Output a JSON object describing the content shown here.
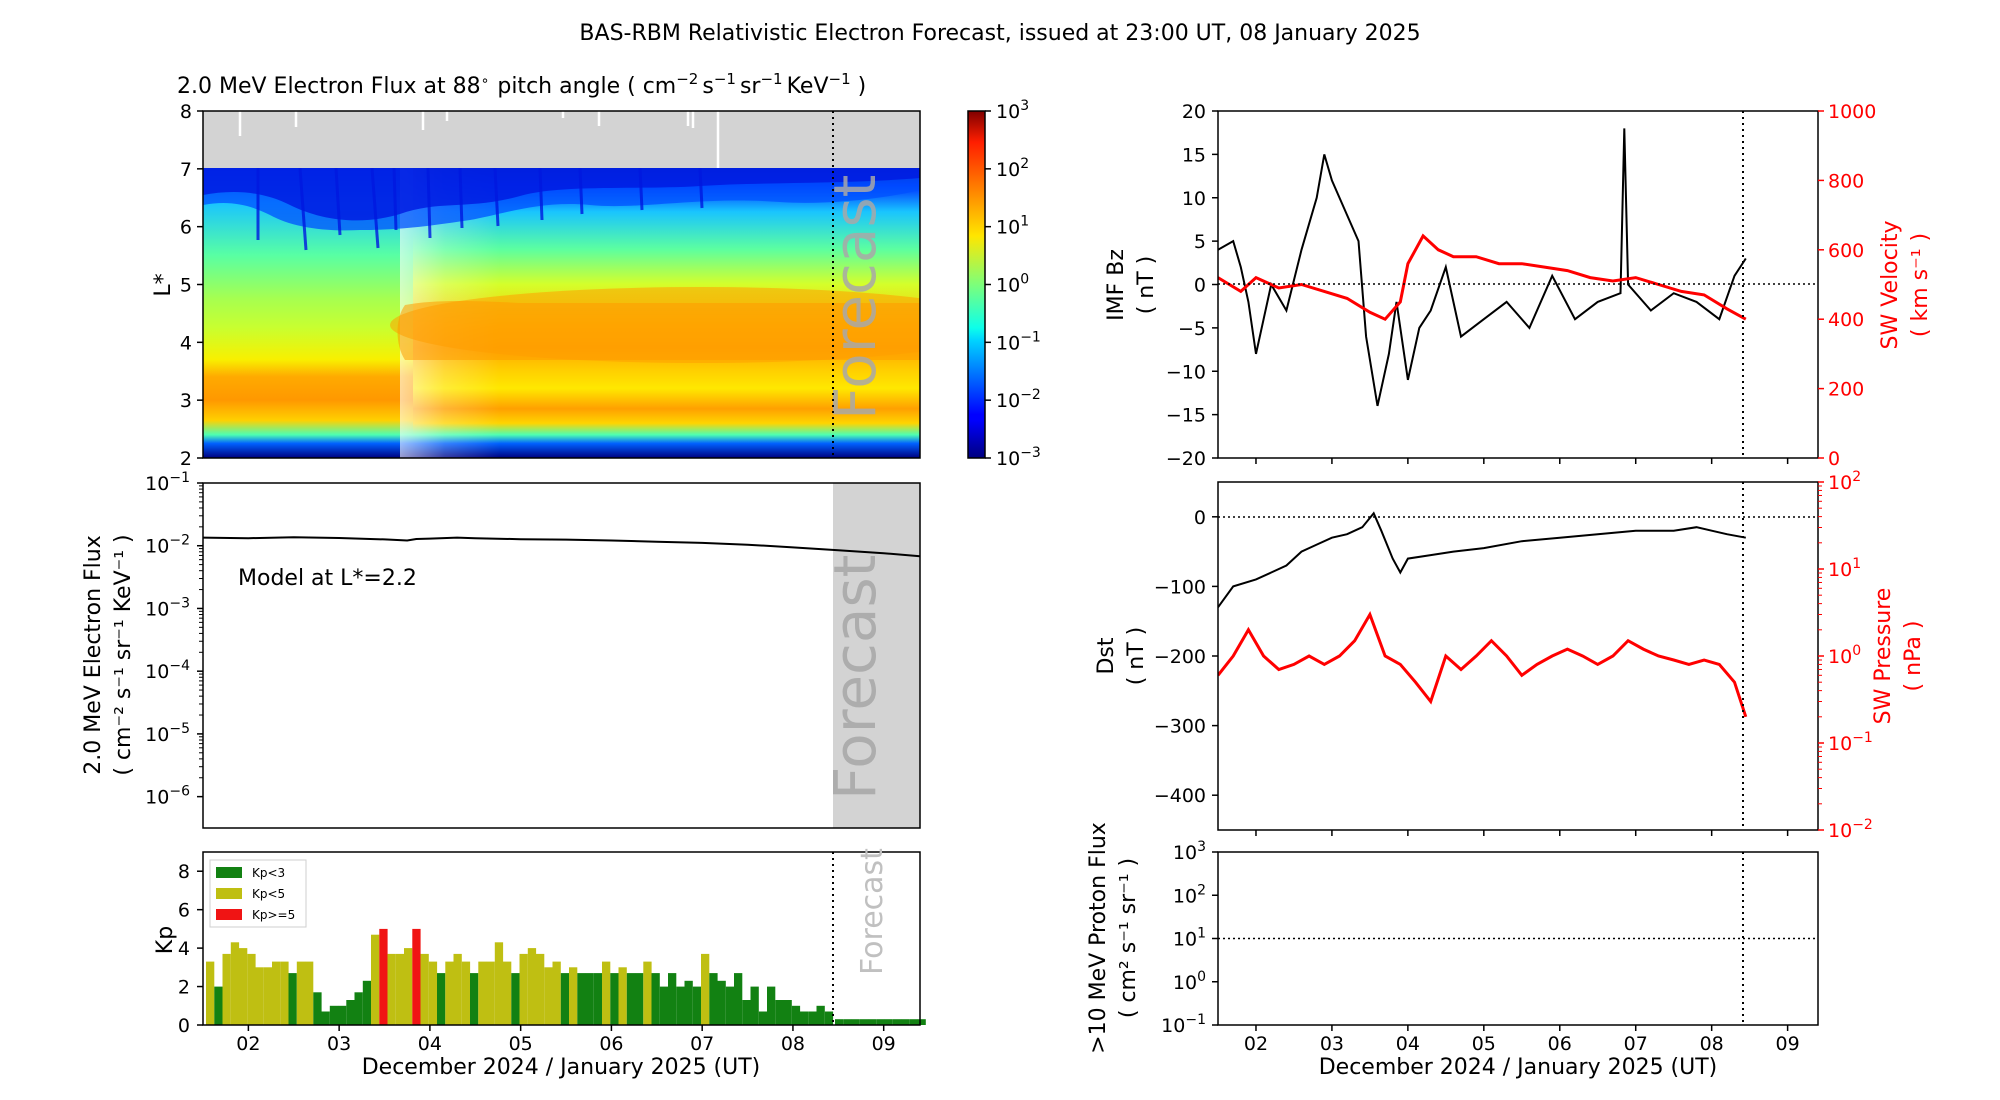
{
  "title": "BAS-RBM Relativistic Electron Forecast, issued at 23:00 UT, 08 January 2025",
  "colors": {
    "kp_low": "#128112",
    "kp_mid": "#bfbf12",
    "kp_high": "#f01414",
    "forecast_shade": "#d3d3d3",
    "gray_top": "#d3d3d3",
    "right_axis": "#ff0000"
  },
  "chart_data": [
    {
      "id": "flux-heatmap",
      "type": "heatmap",
      "title": "2.0 MeV Electron Flux at 88° pitch angle ( cm⁻² s⁻¹ sr⁻¹ KeV⁻¹ )",
      "title_main": "2.0 MeV Electron Flux at 88",
      "title_deg": "∘",
      "title_tail": "pitch angle ( cm",
      "title_units": [
        [
          "s",
          "−1"
        ],
        [
          "sr",
          "−1"
        ],
        [
          "KeV",
          "−1"
        ]
      ],
      "title_cm_sup": "−2",
      "title_close": ")",
      "ylabel": "L*",
      "ylim": [
        2,
        8
      ],
      "yticks": [
        "2",
        "3",
        "4",
        "5",
        "6",
        "7",
        "8"
      ],
      "forecast_label": "Forecast",
      "colorbar": {
        "base": "10",
        "exponents": [
          "−3",
          "−2",
          "−1",
          "0",
          "1",
          "2",
          "3"
        ],
        "range_log10": [
          -3,
          3
        ]
      }
    },
    {
      "id": "flux-line",
      "type": "line",
      "ylabel_line1": "2.0 MeV Electron Flux",
      "ylabel_line2": "( cm⁻² s⁻¹ sr⁻¹ KeV⁻¹ )",
      "annotation": "Model at L*=2.2",
      "yscale": "log",
      "ylim_log10": [
        -6.5,
        -1
      ],
      "ytick_exponents": [
        "−6",
        "−5",
        "−4",
        "−3",
        "−2",
        "−1"
      ],
      "x": [
        1.5,
        2.0,
        2.5,
        3.0,
        3.5,
        3.75,
        3.85,
        4.0,
        4.3,
        4.5,
        5.0,
        5.5,
        6.0,
        6.5,
        7.0,
        7.5,
        8.0,
        8.5,
        9.0,
        9.4
      ],
      "y": [
        0.0135,
        0.0132,
        0.0137,
        0.0133,
        0.0126,
        0.0121,
        0.0128,
        0.013,
        0.0135,
        0.0132,
        0.0127,
        0.0125,
        0.0121,
        0.0116,
        0.0111,
        0.0104,
        0.0094,
        0.0085,
        0.0076,
        0.0068
      ],
      "forecast_label": "Forecast"
    },
    {
      "id": "kp-bars",
      "type": "bar",
      "ylabel": "Kp",
      "ylim": [
        0,
        9
      ],
      "yticks": [
        "0",
        "2",
        "4",
        "6",
        "8"
      ],
      "xlabel": "December 2024 / January 2025 (UT)",
      "xticks": [
        "02",
        "03",
        "04",
        "05",
        "06",
        "07",
        "08",
        "09"
      ],
      "xlim": [
        1.5,
        9.4
      ],
      "legend": [
        "Kp<3",
        "Kp<5",
        "Kp>=5"
      ],
      "forecast_label": "Forecast",
      "values": [
        3.3,
        2.0,
        3.7,
        4.3,
        4.0,
        3.7,
        3.0,
        3.0,
        3.3,
        3.3,
        2.7,
        3.3,
        3.3,
        1.7,
        0.7,
        1.0,
        1.0,
        1.3,
        1.7,
        2.3,
        4.7,
        5.0,
        3.7,
        3.7,
        4.0,
        5.0,
        3.7,
        3.3,
        2.7,
        3.3,
        3.7,
        3.3,
        2.7,
        3.3,
        3.3,
        4.3,
        3.3,
        2.7,
        3.7,
        4.0,
        3.7,
        3.0,
        3.3,
        2.7,
        3.0,
        2.7,
        2.7,
        2.7,
        3.3,
        2.7,
        3.0,
        2.7,
        2.7,
        3.3,
        2.7,
        2.0,
        2.7,
        2.0,
        2.3,
        2.0,
        3.7,
        2.7,
        2.3,
        2.0,
        2.7,
        1.3,
        2.0,
        0.7,
        2.0,
        1.3,
        1.3,
        1.0,
        0.7,
        0.7,
        1.0,
        0.7
      ],
      "forecast_values": [
        0.3,
        0.3,
        0.3,
        0.3,
        0.3,
        0.3,
        0.3,
        0.3,
        0.3,
        0.3,
        0.3
      ]
    },
    {
      "id": "imf-sw",
      "type": "line",
      "ylabel_line1": "IMF Bz",
      "ylabel_line2": "( nT )",
      "ylim": [
        -20,
        20
      ],
      "yticks": [
        "−20",
        "−15",
        "−10",
        "−5",
        "0",
        "5",
        "10",
        "15",
        "20"
      ],
      "y2label_line1": "SW Velocity",
      "y2label_line2": "( km s⁻¹ )",
      "y2lim": [
        0,
        1000
      ],
      "y2ticks": [
        "0",
        "200",
        "400",
        "600",
        "800",
        "1000"
      ],
      "bz_x": [
        1.5,
        1.7,
        1.8,
        1.9,
        2.0,
        2.1,
        2.2,
        2.4,
        2.6,
        2.8,
        2.9,
        3.0,
        3.2,
        3.35,
        3.45,
        3.6,
        3.75,
        3.85,
        4.0,
        4.15,
        4.3,
        4.5,
        4.7,
        5.0,
        5.3,
        5.6,
        5.9,
        6.2,
        6.5,
        6.8,
        6.85,
        6.9,
        7.2,
        7.5,
        7.8,
        8.1,
        8.3,
        8.45
      ],
      "bz_y": [
        4,
        5,
        2,
        -2,
        -8,
        -4,
        0,
        -3,
        4,
        10,
        15,
        12,
        8,
        5,
        -6,
        -14,
        -8,
        -2,
        -11,
        -5,
        -3,
        2,
        -6,
        -4,
        -2,
        -5,
        1,
        -4,
        -2,
        -1,
        18,
        0,
        -3,
        -1,
        -2,
        -4,
        1,
        3
      ],
      "vsw_x": [
        1.5,
        1.8,
        2.0,
        2.3,
        2.6,
        2.9,
        3.2,
        3.5,
        3.7,
        3.9,
        4.0,
        4.1,
        4.2,
        4.4,
        4.6,
        4.9,
        5.2,
        5.5,
        5.8,
        6.1,
        6.4,
        6.7,
        7.0,
        7.3,
        7.6,
        7.9,
        8.2,
        8.45
      ],
      "vsw_y": [
        520,
        480,
        520,
        490,
        500,
        480,
        460,
        420,
        400,
        450,
        560,
        600,
        640,
        600,
        580,
        580,
        560,
        560,
        550,
        540,
        520,
        510,
        520,
        500,
        480,
        470,
        430,
        400
      ]
    },
    {
      "id": "dst-pressure",
      "type": "line",
      "ylabel_line1": "Dst",
      "ylabel_line2": "( nT )",
      "ylim": [
        -450,
        50
      ],
      "yticks": [
        "−400",
        "−300",
        "−200",
        "−100",
        "0"
      ],
      "y2label_line1": "SW Pressure",
      "y2label_line2": "( nPa )",
      "y2scale": "log",
      "y2lim_log10": [
        -2,
        2
      ],
      "y2tick_exponents": [
        "−2",
        "−1",
        "0",
        "1",
        "2"
      ],
      "dst_x": [
        1.5,
        1.7,
        2.0,
        2.2,
        2.4,
        2.6,
        2.8,
        3.0,
        3.2,
        3.4,
        3.55,
        3.65,
        3.8,
        3.9,
        4.0,
        4.3,
        4.6,
        5.0,
        5.5,
        6.0,
        6.5,
        7.0,
        7.5,
        7.8,
        8.0,
        8.2,
        8.45
      ],
      "dst_y": [
        -130,
        -100,
        -90,
        -80,
        -70,
        -50,
        -40,
        -30,
        -25,
        -15,
        5,
        -20,
        -60,
        -80,
        -60,
        -55,
        -50,
        -45,
        -35,
        -30,
        -25,
        -20,
        -20,
        -15,
        -20,
        -25,
        -30
      ],
      "psw_x": [
        1.5,
        1.7,
        1.9,
        2.1,
        2.3,
        2.5,
        2.7,
        2.9,
        3.1,
        3.3,
        3.5,
        3.7,
        3.9,
        4.1,
        4.3,
        4.5,
        4.7,
        4.9,
        5.1,
        5.3,
        5.5,
        5.7,
        5.9,
        6.1,
        6.3,
        6.5,
        6.7,
        6.9,
        7.1,
        7.3,
        7.5,
        7.7,
        7.9,
        8.1,
        8.3,
        8.45
      ],
      "psw_y": [
        0.6,
        1.0,
        2.0,
        1.0,
        0.7,
        0.8,
        1.0,
        0.8,
        1.0,
        1.5,
        3.0,
        1.0,
        0.8,
        0.5,
        0.3,
        1.0,
        0.7,
        1.0,
        1.5,
        1.0,
        0.6,
        0.8,
        1.0,
        1.2,
        1.0,
        0.8,
        1.0,
        1.5,
        1.2,
        1.0,
        0.9,
        0.8,
        0.9,
        0.8,
        0.5,
        0.2
      ]
    },
    {
      "id": "proton-flux",
      "type": "line",
      "ylabel_line1": ">10 MeV Proton Flux",
      "ylabel_line2": "( cm² s⁻¹ sr⁻¹ )",
      "yscale": "log",
      "ylim_log10": [
        -1,
        3
      ],
      "ytick_exponents": [
        "−1",
        "0",
        "1",
        "2",
        "3"
      ],
      "threshold": 10,
      "xlabel": "December 2024 / January 2025 (UT)",
      "xticks": [
        "02",
        "03",
        "04",
        "05",
        "06",
        "07",
        "08",
        "09"
      ],
      "xlim": [
        1.5,
        9.4
      ]
    }
  ]
}
